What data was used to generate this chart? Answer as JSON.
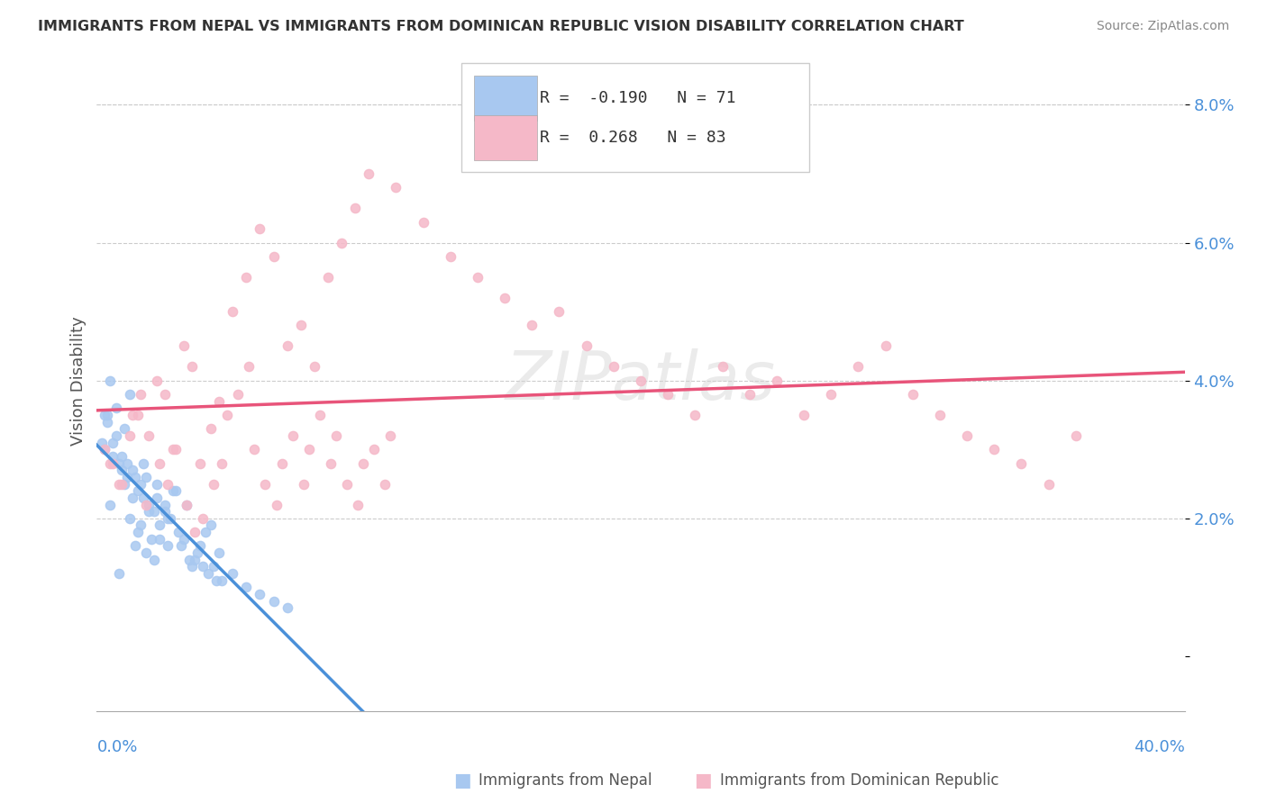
{
  "title": "IMMIGRANTS FROM NEPAL VS IMMIGRANTS FROM DOMINICAN REPUBLIC VISION DISABILITY CORRELATION CHART",
  "source": "Source: ZipAtlas.com",
  "ylabel": "Vision Disability",
  "yticks": [
    0.0,
    0.02,
    0.04,
    0.06,
    0.08
  ],
  "ytick_labels": [
    "",
    "2.0%",
    "4.0%",
    "6.0%",
    "8.0%"
  ],
  "xlim": [
    0.0,
    0.4
  ],
  "ylim": [
    -0.008,
    0.088
  ],
  "nepal_color": "#a8c8f0",
  "nepal_line_color": "#4a90d9",
  "dr_color": "#f5b8c8",
  "dr_line_color": "#e8547a",
  "nepal_R": -0.19,
  "nepal_N": 71,
  "dr_R": 0.268,
  "dr_N": 83,
  "nepal_scatter_x": [
    0.01,
    0.005,
    0.008,
    0.012,
    0.003,
    0.015,
    0.018,
    0.022,
    0.025,
    0.007,
    0.009,
    0.013,
    0.016,
    0.004,
    0.006,
    0.011,
    0.019,
    0.023,
    0.028,
    0.002,
    0.014,
    0.017,
    0.021,
    0.026,
    0.03,
    0.033,
    0.035,
    0.038,
    0.042,
    0.045,
    0.01,
    0.007,
    0.012,
    0.005,
    0.008,
    0.02,
    0.015,
    0.018,
    0.025,
    0.003,
    0.022,
    0.009,
    0.013,
    0.016,
    0.004,
    0.027,
    0.031,
    0.036,
    0.04,
    0.043,
    0.006,
    0.011,
    0.019,
    0.023,
    0.029,
    0.032,
    0.037,
    0.041,
    0.044,
    0.014,
    0.017,
    0.021,
    0.026,
    0.034,
    0.039,
    0.046,
    0.05,
    0.055,
    0.06,
    0.065,
    0.07
  ],
  "nepal_scatter_y": [
    0.025,
    0.022,
    0.028,
    0.02,
    0.03,
    0.018,
    0.015,
    0.025,
    0.022,
    0.032,
    0.027,
    0.023,
    0.019,
    0.035,
    0.029,
    0.026,
    0.021,
    0.017,
    0.024,
    0.031,
    0.016,
    0.028,
    0.014,
    0.02,
    0.018,
    0.022,
    0.013,
    0.016,
    0.019,
    0.015,
    0.033,
    0.036,
    0.038,
    0.04,
    0.012,
    0.017,
    0.024,
    0.026,
    0.021,
    0.035,
    0.023,
    0.029,
    0.027,
    0.025,
    0.034,
    0.02,
    0.016,
    0.014,
    0.018,
    0.013,
    0.031,
    0.028,
    0.022,
    0.019,
    0.024,
    0.017,
    0.015,
    0.012,
    0.011,
    0.026,
    0.023,
    0.021,
    0.016,
    0.014,
    0.013,
    0.011,
    0.012,
    0.01,
    0.009,
    0.008,
    0.007
  ],
  "dr_scatter_x": [
    0.005,
    0.008,
    0.012,
    0.015,
    0.018,
    0.022,
    0.025,
    0.028,
    0.032,
    0.035,
    0.038,
    0.042,
    0.045,
    0.05,
    0.055,
    0.06,
    0.065,
    0.07,
    0.075,
    0.08,
    0.085,
    0.09,
    0.095,
    0.1,
    0.11,
    0.12,
    0.13,
    0.14,
    0.15,
    0.16,
    0.17,
    0.18,
    0.19,
    0.2,
    0.21,
    0.22,
    0.23,
    0.24,
    0.25,
    0.26,
    0.27,
    0.28,
    0.29,
    0.3,
    0.31,
    0.32,
    0.33,
    0.34,
    0.35,
    0.36,
    0.003,
    0.006,
    0.009,
    0.013,
    0.016,
    0.019,
    0.023,
    0.026,
    0.029,
    0.033,
    0.036,
    0.039,
    0.043,
    0.046,
    0.048,
    0.052,
    0.056,
    0.058,
    0.062,
    0.066,
    0.068,
    0.072,
    0.076,
    0.078,
    0.082,
    0.086,
    0.088,
    0.092,
    0.096,
    0.098,
    0.102,
    0.106,
    0.108
  ],
  "dr_scatter_y": [
    0.028,
    0.025,
    0.032,
    0.035,
    0.022,
    0.04,
    0.038,
    0.03,
    0.045,
    0.042,
    0.028,
    0.033,
    0.037,
    0.05,
    0.055,
    0.062,
    0.058,
    0.045,
    0.048,
    0.042,
    0.055,
    0.06,
    0.065,
    0.07,
    0.068,
    0.063,
    0.058,
    0.055,
    0.052,
    0.048,
    0.05,
    0.045,
    0.042,
    0.04,
    0.038,
    0.035,
    0.042,
    0.038,
    0.04,
    0.035,
    0.038,
    0.042,
    0.045,
    0.038,
    0.035,
    0.032,
    0.03,
    0.028,
    0.025,
    0.032,
    0.03,
    0.028,
    0.025,
    0.035,
    0.038,
    0.032,
    0.028,
    0.025,
    0.03,
    0.022,
    0.018,
    0.02,
    0.025,
    0.028,
    0.035,
    0.038,
    0.042,
    0.03,
    0.025,
    0.022,
    0.028,
    0.032,
    0.025,
    0.03,
    0.035,
    0.028,
    0.032,
    0.025,
    0.022,
    0.028,
    0.03,
    0.025,
    0.032
  ]
}
